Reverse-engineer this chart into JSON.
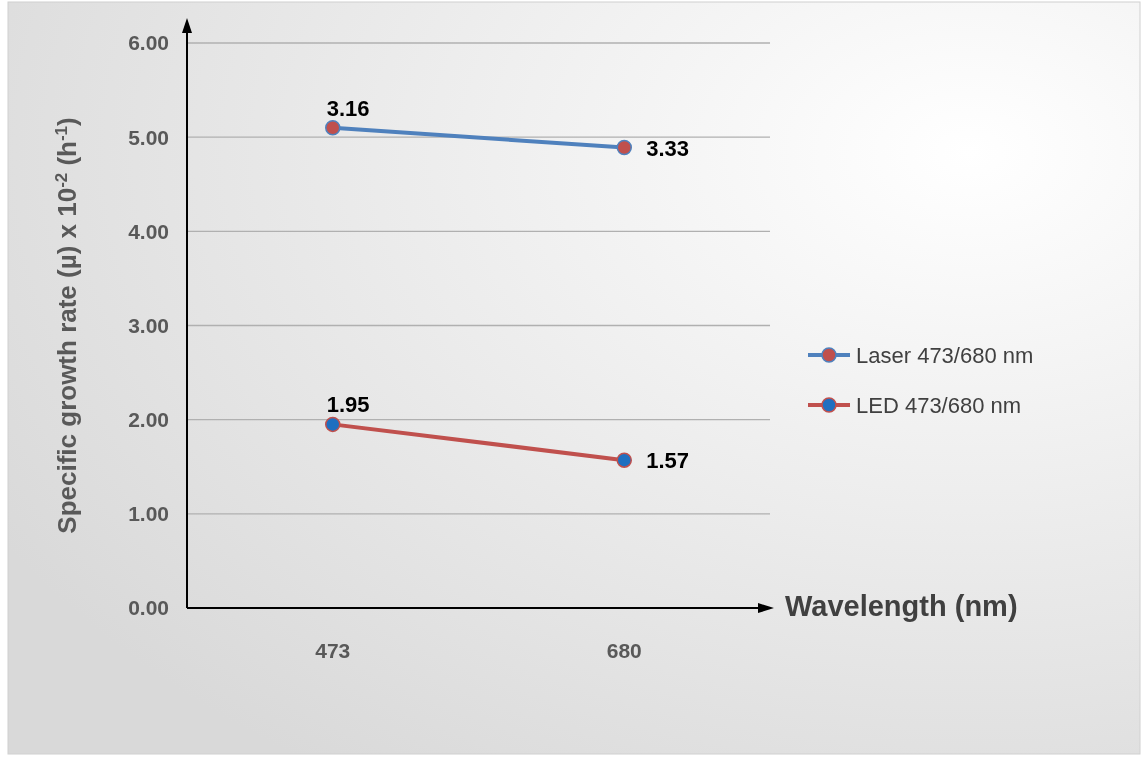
{
  "chart_data": {
    "type": "line",
    "categories": [
      "473",
      "680"
    ],
    "xlabel": "Wavelength (nm)",
    "ylabel": "Specific growth rate (µ)  x 10$^{-2}$ (h$^{-1}$)",
    "series": [
      {
        "name": "Laser 473/680 nm",
        "color": "#4f81bd",
        "colors": [
          "#c0504d",
          "#c0504d"
        ],
        "values": [
          5.1,
          4.89
        ]
      },
      {
        "name": "LED 473/680 nm",
        "color": "#c0504d",
        "colors": [
          "#1f6fc0",
          "#1f6fc0"
        ],
        "values": [
          1.95,
          1.57
        ],
        "value_labels": [
          "1.95",
          "1.57"
        ]
      }
    ],
    "annotations": [
      {
        "text": "3.16",
        "x": "473",
        "y": 5.1
      },
      {
        "text": "3.33",
        "x": "680",
        "y": 4.89
      }
    ],
    "ylim": [
      0,
      6
    ],
    "yticks": [
      {
        "value": 0,
        "label": "0.00"
      },
      {
        "value": 1,
        "label": "1.00"
      },
      {
        "value": 2,
        "label": "2.00"
      },
      {
        "value": 3,
        "label": "3.00"
      },
      {
        "value": 4,
        "label": "4.00"
      },
      {
        "value": 5,
        "label": "5.00"
      },
      {
        "value": 6,
        "label": "6.00"
      }
    ],
    "grid": "y",
    "legend": "right",
    "marker": "circle",
    "line_style": "solid"
  }
}
